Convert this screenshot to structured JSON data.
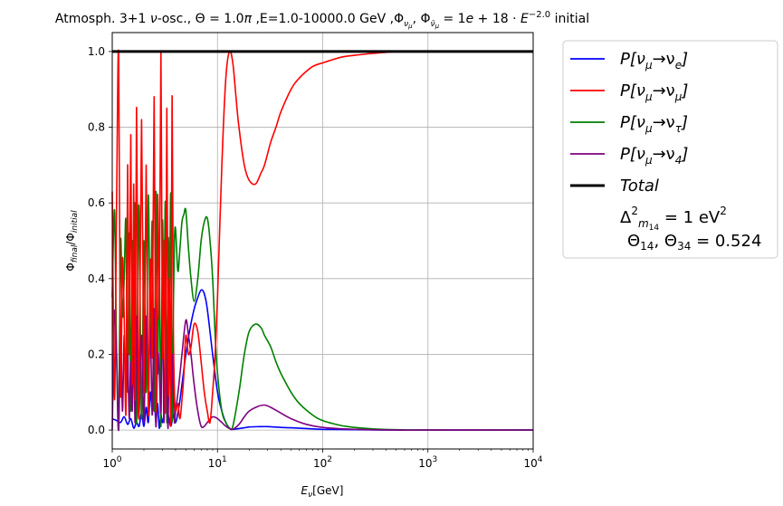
{
  "chart_data": {
    "type": "line",
    "title": "Atmosph. 3+1 ν-osc., Θ = 1.0π ,E=1.0-10000.0 GeV  ,Φ_{ν_μ}, Φ_{ν̄_μ} = 1e + 18 · E^{−2.0} initial",
    "xlabel": "E_ν[GeV]",
    "ylabel": "Φ_final/Φ_initial",
    "xscale": "log",
    "xlim": [
      1,
      10000
    ],
    "ylim": [
      -0.05,
      1.05
    ],
    "grid": true,
    "legend_position": "outside-right",
    "x_ticks": [
      1,
      10,
      100,
      1000,
      10000
    ],
    "x_tick_labels": [
      "10^0",
      "10^1",
      "10^2",
      "10^3",
      "10^4"
    ],
    "y_ticks": [
      0.0,
      0.2,
      0.4,
      0.6,
      0.8,
      1.0
    ],
    "y_tick_labels": [
      "0.0",
      "0.2",
      "0.4",
      "0.6",
      "0.8",
      "1.0"
    ],
    "legend_note": {
      "line1": "Δ²_{m14} = 1 eV²",
      "line2": "Θ14, Θ34 = 0.524"
    },
    "series": [
      {
        "name": "P[νμ→νe]",
        "color": "#0000ff",
        "x": [
          1.0,
          1.1,
          1.2,
          1.3,
          1.4,
          1.5,
          1.6,
          1.7,
          1.8,
          1.9,
          2.0,
          2.1,
          2.2,
          2.3,
          2.4,
          2.5,
          2.6,
          2.7,
          2.8,
          2.9,
          3.0,
          3.2,
          3.4,
          3.6,
          3.8,
          4.0,
          4.3,
          4.6,
          5.0,
          5.5,
          6.0,
          6.5,
          7.0,
          7.5,
          8.0,
          9.0,
          10.0,
          11.0,
          12.0,
          13.0,
          14.0,
          16.0,
          18.0,
          20.0,
          25.0,
          30.0,
          40.0,
          50.0,
          70.0,
          100.0,
          200.0,
          500.0,
          1000.0,
          10000.0
        ],
        "y": [
          0.03,
          0.025,
          0.02,
          0.035,
          0.015,
          0.03,
          0.005,
          0.02,
          0.01,
          0.045,
          0.01,
          0.06,
          0.02,
          0.1,
          0.05,
          0.09,
          0.02,
          0.07,
          0.005,
          0.04,
          0.02,
          0.055,
          0.04,
          0.01,
          0.04,
          0.02,
          0.06,
          0.12,
          0.2,
          0.27,
          0.32,
          0.35,
          0.37,
          0.36,
          0.32,
          0.2,
          0.1,
          0.05,
          0.02,
          0.005,
          0.002,
          0.004,
          0.006,
          0.008,
          0.009,
          0.009,
          0.007,
          0.006,
          0.004,
          0.002,
          0.001,
          0.0,
          0.0,
          0.0
        ]
      },
      {
        "name": "P[νμ→νμ]",
        "color": "#ff0000",
        "x": [
          1.0,
          1.05,
          1.1,
          1.15,
          1.2,
          1.25,
          1.3,
          1.35,
          1.4,
          1.45,
          1.5,
          1.55,
          1.6,
          1.65,
          1.7,
          1.75,
          1.8,
          1.9,
          2.0,
          2.1,
          2.2,
          2.3,
          2.4,
          2.5,
          2.6,
          2.7,
          2.8,
          2.9,
          3.0,
          3.1,
          3.2,
          3.3,
          3.4,
          3.5,
          3.6,
          3.7,
          3.8,
          3.9,
          4.0,
          4.2,
          4.4,
          4.6,
          4.8,
          5.0,
          5.3,
          5.6,
          6.0,
          6.5,
          7.0,
          7.5,
          8.0,
          8.5,
          9.0,
          9.5,
          10.0,
          11.0,
          12.0,
          13.0,
          14.0,
          15.0,
          16.0,
          18.0,
          20.0,
          23.0,
          26.0,
          28.0,
          32.0,
          36.0,
          40.0,
          50.0,
          60.0,
          80.0,
          100.0,
          150.0,
          200.0,
          300.0,
          500.0,
          700.0,
          1000.0,
          2000.0,
          10000.0
        ],
        "y": [
          0.63,
          0.08,
          0.6,
          0.99,
          0.1,
          0.45,
          0.3,
          0.05,
          0.7,
          0.2,
          0.78,
          0.12,
          0.65,
          0.08,
          0.85,
          0.3,
          0.05,
          0.82,
          0.1,
          0.7,
          0.04,
          0.45,
          0.2,
          0.88,
          0.05,
          0.62,
          0.3,
          1.0,
          0.2,
          0.5,
          0.05,
          0.85,
          0.1,
          0.4,
          0.02,
          0.88,
          0.3,
          0.1,
          0.05,
          0.07,
          0.03,
          0.08,
          0.15,
          0.25,
          0.2,
          0.22,
          0.28,
          0.26,
          0.18,
          0.1,
          0.05,
          0.02,
          0.1,
          0.2,
          0.35,
          0.7,
          0.93,
          1.0,
          0.97,
          0.88,
          0.8,
          0.7,
          0.66,
          0.65,
          0.68,
          0.7,
          0.76,
          0.8,
          0.84,
          0.9,
          0.93,
          0.96,
          0.97,
          0.985,
          0.99,
          0.995,
          1.0,
          1.0,
          1.0,
          1.0,
          1.0
        ]
      },
      {
        "name": "P[νμ→ντ]",
        "color": "#008000",
        "x": [
          1.0,
          1.05,
          1.1,
          1.15,
          1.2,
          1.25,
          1.3,
          1.35,
          1.4,
          1.45,
          1.5,
          1.55,
          1.6,
          1.65,
          1.7,
          1.75,
          1.8,
          1.9,
          2.0,
          2.1,
          2.2,
          2.3,
          2.4,
          2.5,
          2.6,
          2.7,
          2.8,
          2.9,
          3.0,
          3.1,
          3.2,
          3.3,
          3.4,
          3.5,
          3.6,
          3.7,
          3.8,
          3.9,
          4.0,
          4.2,
          4.4,
          4.6,
          4.8,
          5.0,
          5.3,
          5.6,
          6.0,
          6.5,
          7.0,
          7.5,
          8.0,
          8.5,
          9.0,
          9.5,
          10.0,
          11.0,
          12.0,
          13.0,
          14.0,
          16.0,
          18.0,
          20.0,
          23.0,
          26.0,
          28.0,
          32.0,
          36.0,
          40.0,
          50.0,
          60.0,
          80.0,
          100.0,
          150.0,
          200.0,
          300.0,
          500.0,
          1000.0,
          10000.0
        ],
        "y": [
          0.35,
          0.58,
          0.2,
          0.01,
          0.5,
          0.3,
          0.4,
          0.55,
          0.1,
          0.52,
          0.05,
          0.5,
          0.15,
          0.6,
          0.02,
          0.4,
          0.58,
          0.03,
          0.5,
          0.1,
          0.62,
          0.25,
          0.55,
          0.05,
          0.63,
          0.15,
          0.45,
          0.01,
          0.55,
          0.3,
          0.6,
          0.02,
          0.5,
          0.35,
          0.62,
          0.03,
          0.3,
          0.5,
          0.53,
          0.42,
          0.48,
          0.55,
          0.57,
          0.58,
          0.48,
          0.4,
          0.34,
          0.4,
          0.5,
          0.55,
          0.56,
          0.5,
          0.4,
          0.25,
          0.15,
          0.05,
          0.02,
          0.005,
          0.01,
          0.1,
          0.2,
          0.26,
          0.28,
          0.27,
          0.25,
          0.22,
          0.18,
          0.15,
          0.1,
          0.07,
          0.04,
          0.025,
          0.012,
          0.007,
          0.003,
          0.001,
          0.0,
          0.0
        ]
      },
      {
        "name": "P[νμ→ν4]",
        "color": "#800080",
        "x": [
          1.0,
          1.05,
          1.1,
          1.15,
          1.2,
          1.25,
          1.3,
          1.35,
          1.4,
          1.45,
          1.5,
          1.55,
          1.6,
          1.65,
          1.7,
          1.75,
          1.8,
          1.9,
          2.0,
          2.1,
          2.2,
          2.3,
          2.4,
          2.5,
          2.6,
          2.7,
          2.8,
          2.9,
          3.0,
          3.1,
          3.2,
          3.3,
          3.4,
          3.5,
          3.6,
          3.7,
          3.8,
          3.9,
          4.0,
          4.3,
          4.6,
          5.0,
          5.3,
          5.6,
          6.0,
          6.5,
          7.0,
          7.5,
          8.0,
          9.0,
          10.0,
          11.0,
          12.0,
          13.0,
          14.0,
          16.0,
          18.0,
          20.0,
          24.0,
          28.0,
          32.0,
          40.0,
          50.0,
          70.0,
          100.0,
          200.0,
          500.0,
          1000.0,
          10000.0
        ],
        "y": [
          0.0,
          0.31,
          0.2,
          0.0,
          0.28,
          0.05,
          0.25,
          0.1,
          0.2,
          0.03,
          0.18,
          0.05,
          0.22,
          0.02,
          0.3,
          0.1,
          0.04,
          0.25,
          0.02,
          0.3,
          0.1,
          0.27,
          0.04,
          0.32,
          0.01,
          0.2,
          0.15,
          0.05,
          0.34,
          0.02,
          0.28,
          0.12,
          0.01,
          0.3,
          0.05,
          0.2,
          0.1,
          0.02,
          0.05,
          0.12,
          0.2,
          0.29,
          0.25,
          0.2,
          0.12,
          0.05,
          0.01,
          0.01,
          0.02,
          0.035,
          0.03,
          0.02,
          0.01,
          0.004,
          0.002,
          0.015,
          0.035,
          0.05,
          0.062,
          0.066,
          0.06,
          0.045,
          0.03,
          0.015,
          0.007,
          0.002,
          0.0,
          0.0,
          0.0
        ]
      },
      {
        "name": "Total",
        "color": "#000000",
        "x": [
          1.0,
          10000.0
        ],
        "y": [
          1.0,
          1.0
        ]
      }
    ]
  }
}
